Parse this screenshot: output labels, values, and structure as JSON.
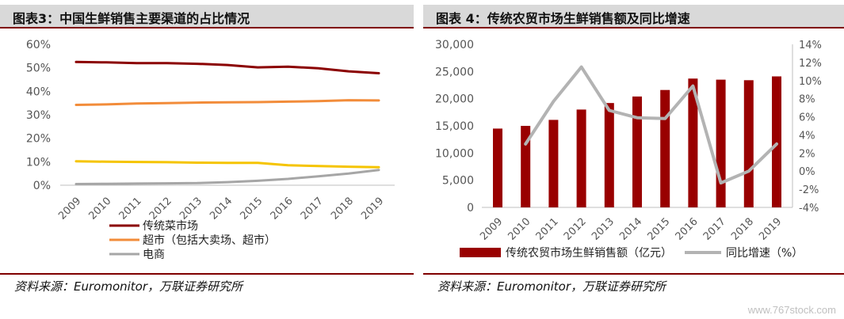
{
  "left_panel": {
    "title": "图表3：中国生鲜销售主要渠道的占比情况",
    "source": "资料来源：Euromonitor，万联证券研究所"
  },
  "right_panel": {
    "title": "图表 4：传统农贸市场生鲜销售额及同比增速",
    "source": "资料来源：Euromonitor，万联证券研究所"
  },
  "watermark": "www.767stock.com",
  "colors": {
    "title_bar": "#d9d9d9",
    "accent_line": "#7f0000",
    "series_cai_shichang": "#8b0000",
    "series_chaoshi": "#f28c3a",
    "series_dianshang": "#a6a6a6",
    "series_yellow": "#f5c400",
    "bar": "#990000",
    "growth_line": "#b3b3b3"
  },
  "chart_data": [
    {
      "type": "line",
      "x": [
        "2009",
        "2010",
        "2011",
        "2012",
        "2013",
        "2014",
        "2015",
        "2016",
        "2017",
        "2018",
        "2019"
      ],
      "yticks": [
        "0%",
        "10%",
        "20%",
        "30%",
        "40%",
        "50%",
        "60%"
      ],
      "ylim": [
        0,
        60
      ],
      "grid": false,
      "legend_position": "bottom-left",
      "series": [
        {
          "name": "传统菜市场",
          "color": "#8b0000",
          "values": [
            52.5,
            52.3,
            52.0,
            52.0,
            51.7,
            51.2,
            50.2,
            50.5,
            49.8,
            48.5,
            47.7
          ]
        },
        {
          "name": "超市（包括大卖场、超市）",
          "color": "#f28c3a",
          "values": [
            34.2,
            34.4,
            34.8,
            35.0,
            35.2,
            35.3,
            35.4,
            35.6,
            35.8,
            36.2,
            36.1
          ]
        },
        {
          "name": "",
          "color": "#f5c400",
          "values": [
            10.2,
            10.0,
            9.9,
            9.8,
            9.6,
            9.5,
            9.5,
            8.5,
            8.2,
            7.9,
            7.7
          ]
        },
        {
          "name": "电商",
          "color": "#a6a6a6",
          "values": [
            0.5,
            0.6,
            0.7,
            0.8,
            0.9,
            1.3,
            1.9,
            2.7,
            3.8,
            5.0,
            6.5
          ]
        }
      ]
    },
    {
      "type": "bar",
      "categories": [
        "2009",
        "2010",
        "2011",
        "2012",
        "2013",
        "2014",
        "2015",
        "2016",
        "2017",
        "2018",
        "2019"
      ],
      "series": [
        {
          "name": "传统农贸市场生鲜销售额（亿元）",
          "type": "bar",
          "axis": "left",
          "values": [
            14500,
            15000,
            16100,
            18000,
            19200,
            20400,
            21600,
            23700,
            23500,
            23400,
            24100
          ]
        },
        {
          "name": "同比增速（%）",
          "type": "line",
          "axis": "right",
          "values": [
            null,
            3.0,
            7.7,
            11.5,
            6.7,
            5.9,
            5.8,
            9.4,
            -1.3,
            0.0,
            3.0
          ]
        }
      ],
      "yticks_left": [
        "0",
        "5,000",
        "10,000",
        "15,000",
        "20,000",
        "25,000",
        "30,000"
      ],
      "ylim_left": [
        0,
        30000
      ],
      "yticks_right": [
        "-4%",
        "-2%",
        "0%",
        "2%",
        "4%",
        "6%",
        "8%",
        "10%",
        "12%",
        "14%"
      ],
      "ylim_right": [
        -4,
        14
      ],
      "grid": false,
      "legend_position": "bottom"
    }
  ]
}
